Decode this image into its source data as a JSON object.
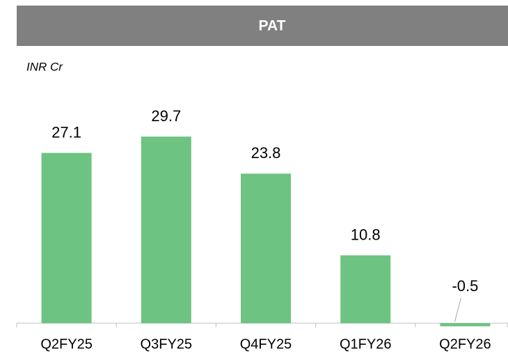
{
  "chart_data": {
    "type": "bar",
    "title": "PAT",
    "subtitle": "INR Cr",
    "categories": [
      "Q2FY25",
      "Q3FY25",
      "Q4FY25",
      "Q1FY26",
      "Q2FY26"
    ],
    "values": [
      27.1,
      29.7,
      23.8,
      10.8,
      -0.5
    ],
    "color": "#6dc381"
  }
}
